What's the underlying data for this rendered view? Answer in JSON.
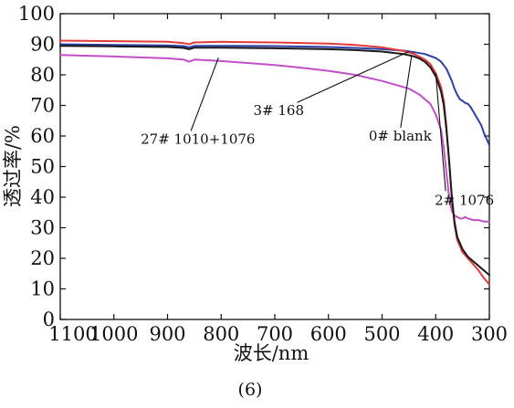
{
  "chart_data": {
    "type": "line",
    "xlabel": "波长/nm",
    "ylabel": "透过率/%",
    "caption": "(6)",
    "xlim": [
      1100,
      300
    ],
    "ylim": [
      0,
      100
    ],
    "x_ticks": [
      1100,
      1000,
      900,
      800,
      700,
      600,
      500,
      400,
      300
    ],
    "y_ticks": [
      0,
      10,
      20,
      30,
      40,
      50,
      60,
      70,
      80,
      90,
      100
    ],
    "grid": false,
    "series": [
      {
        "name": "0# blank",
        "color": "#1a1a1a",
        "x": [
          1100,
          1000,
          900,
          870,
          860,
          850,
          800,
          700,
          600,
          550,
          500,
          460,
          440,
          430,
          420,
          410,
          400,
          390,
          385,
          380,
          375,
          370,
          365,
          360,
          350,
          340,
          330,
          320,
          310,
          300
        ],
        "y": [
          89.5,
          89.3,
          89.1,
          88.8,
          88.4,
          88.9,
          88.9,
          88.7,
          88.4,
          88.1,
          87.6,
          86.8,
          86.0,
          85.3,
          84.2,
          82.5,
          79.5,
          74.5,
          70.0,
          62.0,
          52.0,
          40.0,
          32.0,
          27.0,
          23.0,
          20.5,
          19.0,
          17.5,
          16.0,
          14.5
        ]
      },
      {
        "name": "2# 1076",
        "color": "#e23b3b",
        "x": [
          1100,
          1000,
          900,
          870,
          860,
          850,
          800,
          700,
          600,
          550,
          500,
          460,
          440,
          420,
          410,
          400,
          390,
          385,
          380,
          375,
          370,
          365,
          360,
          350,
          340,
          330,
          320,
          310,
          300
        ],
        "y": [
          91.2,
          91.0,
          90.8,
          90.4,
          90.0,
          90.6,
          90.8,
          90.6,
          90.2,
          89.8,
          89.0,
          87.8,
          86.8,
          85.0,
          83.5,
          80.5,
          76.0,
          71.5,
          63.0,
          52.0,
          40.0,
          31.0,
          26.0,
          22.0,
          20.0,
          18.0,
          16.0,
          13.5,
          11.5
        ]
      },
      {
        "name": "3# 168",
        "color": "#2d3fa8",
        "x": [
          1100,
          1000,
          900,
          870,
          860,
          850,
          800,
          700,
          600,
          550,
          500,
          460,
          440,
          420,
          400,
          390,
          380,
          370,
          365,
          360,
          355,
          350,
          345,
          340,
          335,
          330,
          325,
          320,
          315,
          310,
          305,
          300
        ],
        "y": [
          90.0,
          89.8,
          89.6,
          89.4,
          89.0,
          89.5,
          89.5,
          89.4,
          89.1,
          88.8,
          88.4,
          87.9,
          87.4,
          86.8,
          85.5,
          84.3,
          82.0,
          78.0,
          75.5,
          73.5,
          72.0,
          71.5,
          70.8,
          70.5,
          69.5,
          68.0,
          66.5,
          65.0,
          63.5,
          61.0,
          59.0,
          57.0
        ]
      },
      {
        "name": "27# 1010+1076",
        "color": "#c24fc7",
        "x": [
          1100,
          1000,
          900,
          870,
          860,
          850,
          800,
          700,
          650,
          600,
          550,
          500,
          450,
          430,
          410,
          400,
          390,
          385,
          380,
          375,
          370,
          365,
          360,
          355,
          350,
          345,
          340,
          330,
          320,
          310,
          300
        ],
        "y": [
          86.5,
          86.0,
          85.4,
          85.0,
          84.3,
          85.0,
          84.5,
          83.2,
          82.3,
          81.3,
          80.0,
          78.0,
          75.5,
          73.5,
          70.5,
          67.0,
          62.0,
          56.0,
          48.0,
          40.0,
          35.5,
          34.0,
          33.5,
          33.0,
          33.0,
          33.5,
          33.0,
          32.5,
          32.5,
          32.0,
          32.0
        ]
      }
    ],
    "annotations": [
      {
        "text": "27# 1010+1076",
        "series": "27# 1010+1076",
        "text_x": 950,
        "text_y": 57.5,
        "target_x": 805,
        "target_y": 85.6
      },
      {
        "text": "3# 168",
        "series": "3# 168",
        "text_x": 740,
        "text_y": 66.8,
        "target_x": 450,
        "target_y": 87.6
      },
      {
        "text": "0# blank",
        "series": "0# blank",
        "text_x": 525,
        "text_y": 58.5,
        "target_x": 445,
        "target_y": 86.2
      },
      {
        "text": "2# 1076",
        "series": "2# 1076",
        "text_x": 402,
        "text_y": 37.5,
        "target_x": 400,
        "target_y": 80.5
      }
    ]
  }
}
